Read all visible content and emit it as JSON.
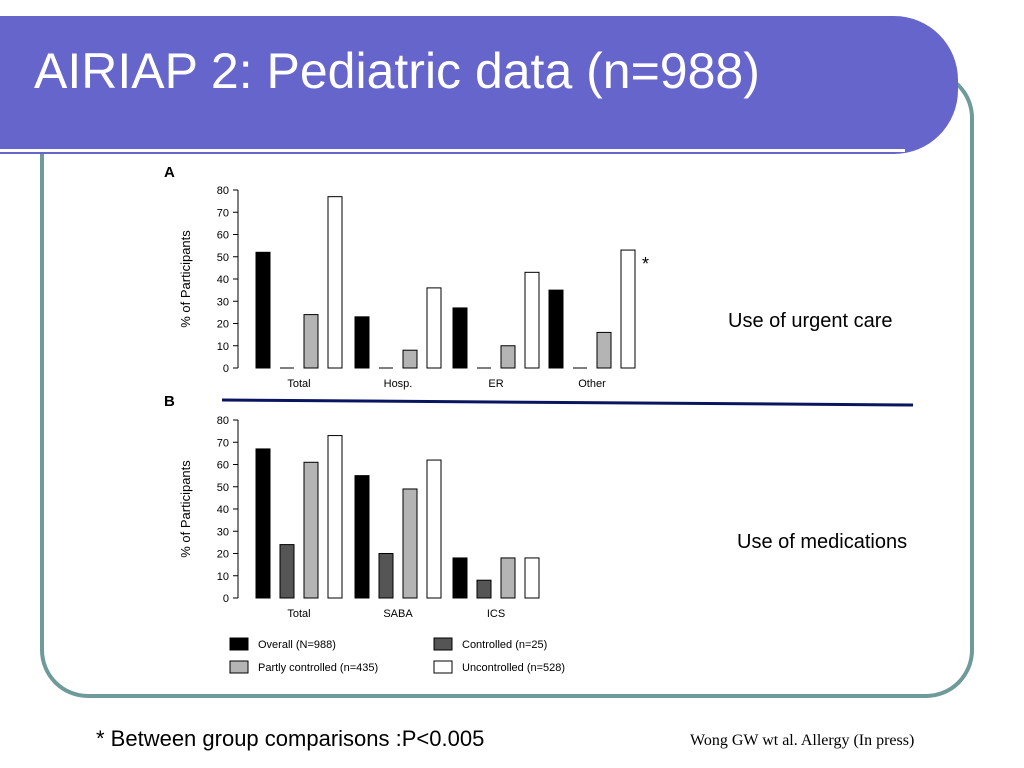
{
  "slide": {
    "title": "AIRIAP 2: Pediatric data (n=988)",
    "asterisk": "*",
    "note_urgent_care": "Use of urgent care",
    "note_medications": "Use of medications",
    "footnote": "* Between group comparisons :P<0.005",
    "citation": "Wong GW wt al. Allergy (In press)"
  },
  "colors": {
    "title_bar": "#6565cc",
    "frame_border": "#6e9a9a",
    "divider_line": "#0a1560",
    "overall": "#000000",
    "controlled": "#555555",
    "partly_controlled": "#b4b4b4",
    "uncontrolled": "#ffffff"
  },
  "legend": [
    {
      "name": "Overall (N=988)",
      "color": "#000000"
    },
    {
      "name": "Controlled (n=25)",
      "color": "#555555"
    },
    {
      "name": "Partly controlled (n=435)",
      "color": "#b4b4b4"
    },
    {
      "name": "Uncontrolled (n=528)",
      "color": "#ffffff"
    }
  ],
  "chart_data": [
    {
      "type": "bar",
      "panel_label": "A",
      "ylabel": "% of Participants",
      "ylim": [
        0,
        80
      ],
      "yticks": [
        0,
        10,
        20,
        30,
        40,
        50,
        60,
        70,
        80
      ],
      "categories": [
        "Total",
        "Hosp.",
        "ER",
        "Other"
      ],
      "series": [
        {
          "name": "Overall (N=988)",
          "values": [
            52,
            23,
            27,
            35
          ]
        },
        {
          "name": "Controlled (n=25)",
          "values": [
            0,
            0,
            0,
            0
          ]
        },
        {
          "name": "Partly controlled (n=435)",
          "values": [
            24,
            8,
            10,
            16
          ]
        },
        {
          "name": "Uncontrolled (n=528)",
          "values": [
            77,
            36,
            43,
            53
          ]
        }
      ],
      "legend_position": "bottom",
      "grid": false
    },
    {
      "type": "bar",
      "panel_label": "B",
      "ylabel": "% of Participants",
      "ylim": [
        0,
        80
      ],
      "yticks": [
        0,
        10,
        20,
        30,
        40,
        50,
        60,
        70,
        80
      ],
      "categories": [
        "Total",
        "SABA",
        "ICS"
      ],
      "series": [
        {
          "name": "Overall (N=988)",
          "values": [
            67,
            55,
            18
          ]
        },
        {
          "name": "Controlled (n=25)",
          "values": [
            24,
            20,
            8
          ]
        },
        {
          "name": "Partly controlled (n=435)",
          "values": [
            61,
            49,
            18
          ]
        },
        {
          "name": "Uncontrolled (n=528)",
          "values": [
            73,
            62,
            18
          ]
        }
      ],
      "legend_position": "bottom",
      "grid": false
    }
  ]
}
